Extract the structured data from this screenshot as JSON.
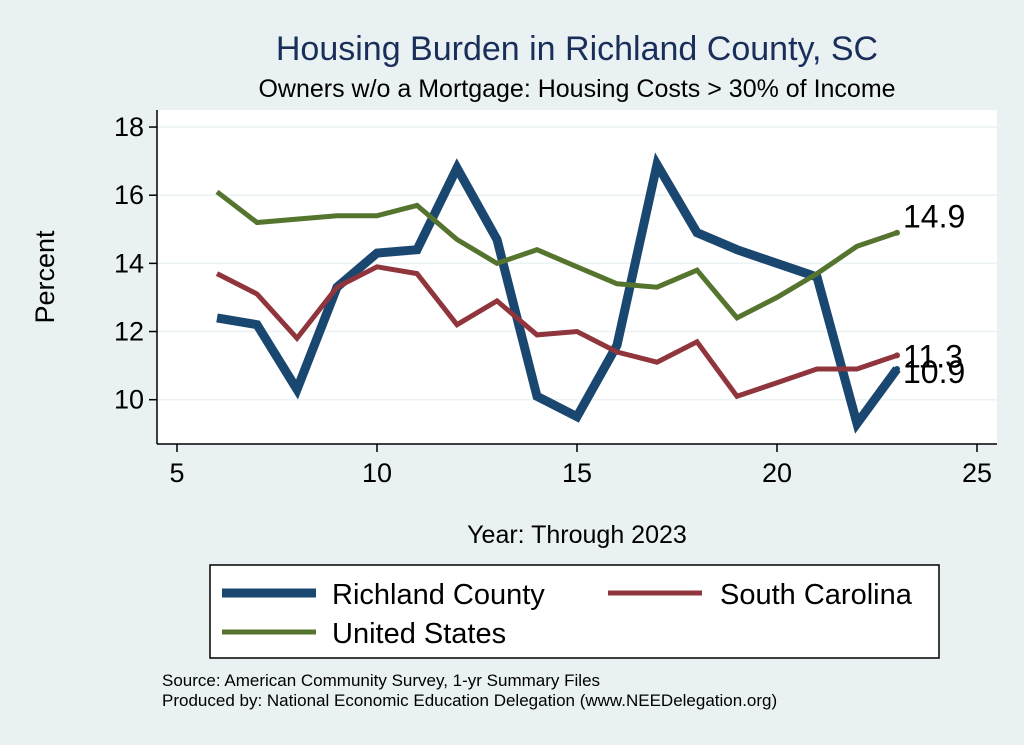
{
  "colors": {
    "background": "#eaf1f3",
    "plot_bg": "#ffffff",
    "title": "#1a2e5a",
    "richland": "#1a476f",
    "south_carolina": "#90353b",
    "united_states": "#55752f",
    "grid": "#eaf2f3"
  },
  "chart_data": {
    "type": "line",
    "title": "Housing Burden in Richland County, SC",
    "subtitle": "Owners w/o a Mortgage: Housing Costs > 30% of Income",
    "xlabel": "Year: Through 2023",
    "ylabel": "Percent",
    "xlim": [
      4.5,
      25.5
    ],
    "ylim": [
      8.7,
      18.5
    ],
    "xticks": [
      5,
      10,
      15,
      20,
      25
    ],
    "yticks": [
      10,
      12,
      14,
      16,
      18
    ],
    "x": [
      6,
      7,
      8,
      9,
      10,
      11,
      12,
      13,
      14,
      15,
      16,
      17,
      18,
      19,
      20,
      21,
      22,
      23
    ],
    "series": [
      {
        "name": "Richland County",
        "color_key": "richland",
        "width": 9,
        "values": [
          12.4,
          12.2,
          10.3,
          13.3,
          14.3,
          14.4,
          16.8,
          14.7,
          10.1,
          9.5,
          11.6,
          16.9,
          14.9,
          14.4,
          14.0,
          13.6,
          9.3,
          10.9
        ],
        "end_label": "10.9"
      },
      {
        "name": "South Carolina",
        "color_key": "south_carolina",
        "width": 5,
        "values": [
          13.7,
          13.1,
          11.8,
          13.3,
          13.9,
          13.7,
          12.2,
          12.9,
          11.9,
          12.0,
          11.4,
          11.1,
          11.7,
          10.1,
          10.5,
          10.9,
          10.9,
          11.3
        ],
        "end_label": "11.3"
      },
      {
        "name": "United States",
        "color_key": "united_states",
        "width": 5,
        "values": [
          16.1,
          15.2,
          15.3,
          15.4,
          15.4,
          15.7,
          14.7,
          14.0,
          14.4,
          13.9,
          13.4,
          13.3,
          13.8,
          12.4,
          13.0,
          13.7,
          14.5,
          14.9
        ],
        "end_label": "14.9"
      }
    ],
    "legend": {
      "position": "bottom",
      "entries": [
        "Richland County",
        "South Carolina",
        "United States"
      ]
    }
  },
  "source_line": "Source: American Community Survey, 1-yr Summary Files",
  "produced_line": "Produced by: National Economic Education Delegation (www.NEEDelegation.org)"
}
